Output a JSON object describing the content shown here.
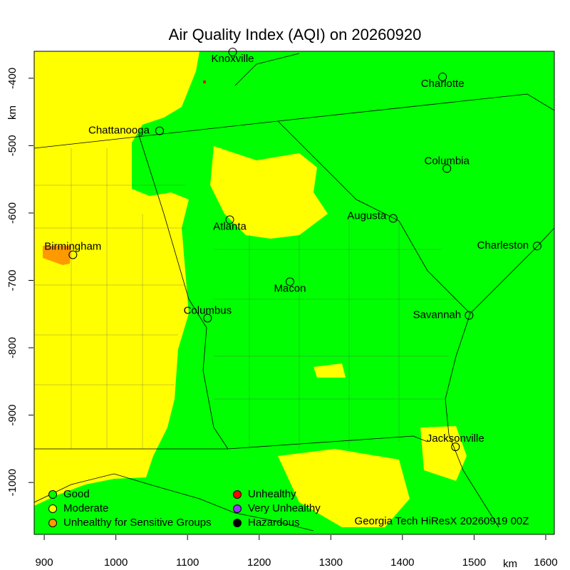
{
  "chart_data": {
    "type": "map",
    "title": "Air Quality Index (AQI) on 20260920",
    "xlabel": "km",
    "ylabel": "km",
    "xlim": [
      886,
      1612
    ],
    "ylim": [
      -1077,
      -360
    ],
    "xticks": [
      900,
      1000,
      1100,
      1200,
      1300,
      1400,
      1500,
      1600
    ],
    "yticks": [
      -400,
      -500,
      -600,
      -700,
      -800,
      -900,
      -1000
    ],
    "cities": {
      "names": [
        "Knoxville",
        "Charlotte",
        "Chattanooga",
        "Columbia",
        "Augusta",
        "Atlanta",
        "Birmingham",
        "Charleston",
        "Macon",
        "Columbus",
        "Savannah",
        "Jacksonville"
      ],
      "x": [
        1163,
        1456,
        1061,
        1462,
        1387,
        1159,
        940,
        1588,
        1243,
        1128,
        1493,
        1474
      ],
      "y": [
        -361,
        -398,
        -478,
        -534,
        -608,
        -610,
        -662,
        -649,
        -702,
        -756,
        -752,
        -947
      ]
    },
    "legend": [
      {
        "name": "Good",
        "color": "#00ff00"
      },
      {
        "name": "Moderate",
        "color": "#ffff00"
      },
      {
        "name": "Unhealthy for Sensitive Groups",
        "color": "#ff9900"
      },
      {
        "name": "Unhealthy",
        "color": "#ff0000"
      },
      {
        "name": "Very Unhealthy",
        "color": "#9933ff"
      },
      {
        "name": "Hazardous",
        "color": "#000000"
      }
    ],
    "source": "Georgia Tech HiResX 20260919 00Z"
  }
}
